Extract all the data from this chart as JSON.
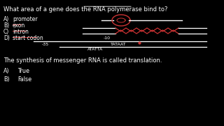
{
  "bg_color": "#000000",
  "text_color": "#ffffff",
  "red_color": "#cc3333",
  "title": "What area of a gene does the RNA polymerase bind to?",
  "q1_options": [
    [
      "A)",
      "promoter",
      false
    ],
    [
      "B)",
      "exon",
      true
    ],
    [
      "C)",
      "intron",
      true
    ],
    [
      "D)",
      "start codon",
      true
    ]
  ],
  "q2": "The synthesis of messenger RNA is called translation.",
  "q2_options": [
    [
      "A)",
      "True"
    ],
    [
      "B)",
      "False"
    ]
  ],
  "minus35": "-35",
  "minus10": "-10",
  "tataat": "TATAAT",
  "atatta": "ATATTA"
}
